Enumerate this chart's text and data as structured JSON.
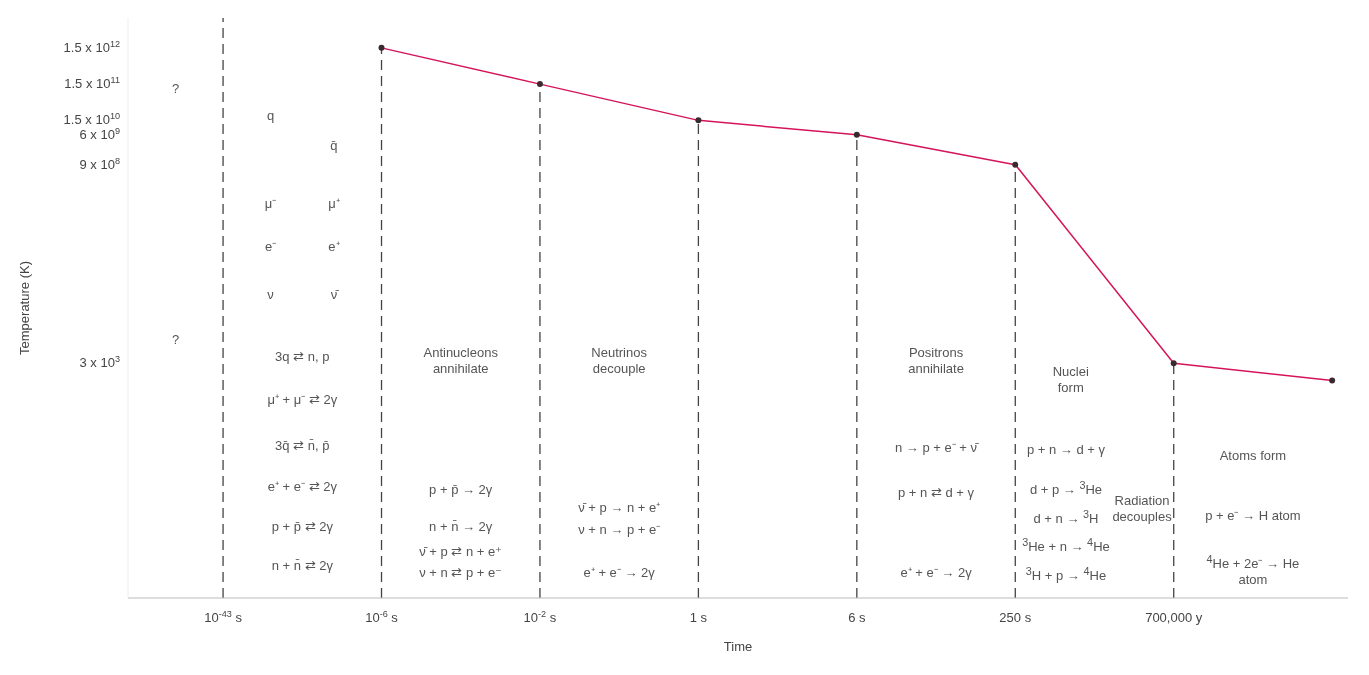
{
  "chart_data": {
    "type": "line",
    "xlabel": "Time",
    "ylabel": "Temperature (K)",
    "categories": [
      "10$^{-43}$ s",
      "10$^{-6}$ s",
      "10$^{-2}$ s",
      "1 s",
      "6 s",
      "250 s",
      "700,000 y",
      null
    ],
    "series": [
      {
        "color": "#d4145a",
        "values": [
          null,
          1500000000000.0,
          150000000000.0,
          15000000000.0,
          6000000000.0,
          900000000.0,
          3000.0,
          1000.0
        ]
      }
    ],
    "log": "y",
    "ylim": [
      0.001,
      10000000000000.0
    ],
    "yticks": [
      {
        "value": 3000.0,
        "label": "3 x 10$^{3}$"
      },
      {
        "value": 900000000.0,
        "label": "9 x 10$^{8}$"
      },
      {
        "value": 6000000000.0,
        "label": "6 x 10$^{9}$"
      },
      {
        "value": 15000000000.0,
        "label": "1.5 x 10$^{10}$"
      },
      {
        "value": 150000000000.0,
        "label": "1.5 x 10$^{11}$"
      },
      {
        "value": 1500000000000.0,
        "label": "1.5 x 10$^{12}$"
      }
    ],
    "marker": "circle",
    "line_style": "solid",
    "ref_lines": [
      {
        "axis": "x",
        "value": "10$^{-43}$ s",
        "line_style": "dashed",
        "color": "#444444"
      },
      {
        "axis": "x",
        "value": "10$^{-6}$ s",
        "line_style": "dashed",
        "color": "#444444"
      },
      {
        "axis": "x",
        "value": "10$^{-2}$ s",
        "line_style": "dashed",
        "color": "#444444"
      },
      {
        "axis": "x",
        "value": "1 s",
        "line_style": "dashed",
        "color": "#444444"
      },
      {
        "axis": "x",
        "value": "6 s",
        "line_style": "dashed",
        "color": "#444444"
      },
      {
        "axis": "x",
        "value": "250 s",
        "line_style": "dashed",
        "color": "#444444"
      },
      {
        "axis": "x",
        "value": "700,000 y",
        "line_style": "dashed",
        "color": "#444444"
      }
    ],
    "annotations": [
      "?",
      "?",
      "q",
      "q̄",
      "μ⁻",
      "μ⁺",
      "e⁻",
      "e⁺",
      "ν",
      "ν̄",
      "3q ⇄ n, p",
      "μ⁺ + μ⁻ ⇄ 2γ",
      "3q̄ ⇄ n̄, p̄",
      "e⁺ + e⁻ ⇄ 2γ",
      "p + p̄ ⇄ 2γ",
      "n + n̄ ⇄ 2γ",
      "Antinucleons annihilate",
      "p + p̄ → 2γ",
      "n + n̄ → 2γ",
      "ν̄ + p ⇄ n + e⁺",
      "ν + n ⇄ p + e⁻",
      "Neutrinos decouple",
      "ν̄ + p → n + e⁺",
      "ν + n → p + e⁻",
      "e⁺ + e⁻ → 2γ",
      "Positrons annihilate",
      "n → p + e⁻ + ν̄",
      "p + n ⇄ d + γ",
      "e⁺ + e⁻ → 2γ",
      "Nuclei form",
      "p + n → d + γ",
      "d + p → $^{3}$He",
      "d + n → $^{3}$H",
      "$^{3}$He + n → $^{4}$He",
      "$^{3}$H + p → $^{4}$He",
      "Radiation decouples",
      "Atoms form",
      "p + e⁻ → H atom",
      "$^{4}$He + 2e⁻ → He atom"
    ]
  }
}
